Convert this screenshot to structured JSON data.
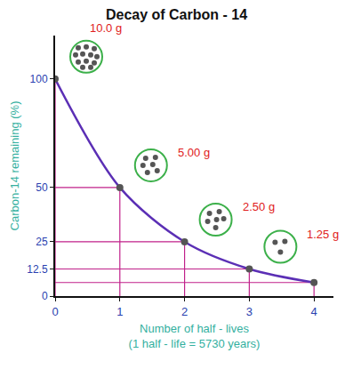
{
  "chart_data": {
    "type": "line",
    "title": "Decay of Carbon - 14",
    "x_label": "Number of half - lives\n(1 half - life = 5730 years)",
    "y_label": "Carbon-14 remaining (%)",
    "x": [
      0,
      1,
      2,
      3,
      4
    ],
    "values": [
      100,
      50,
      25,
      12.5,
      6.25
    ],
    "color": "#5b2fb5",
    "marker": "circle",
    "xlim": [
      0,
      4.3
    ],
    "xticks": [
      0,
      1,
      2,
      3,
      4
    ],
    "ylim": [
      0,
      120
    ],
    "yticks": [
      0,
      12.5,
      25,
      50,
      100
    ],
    "grid": false,
    "annotations": [
      "10.0 g",
      "5.00 g",
      "2.50 g",
      "1.25 g"
    ]
  }
}
